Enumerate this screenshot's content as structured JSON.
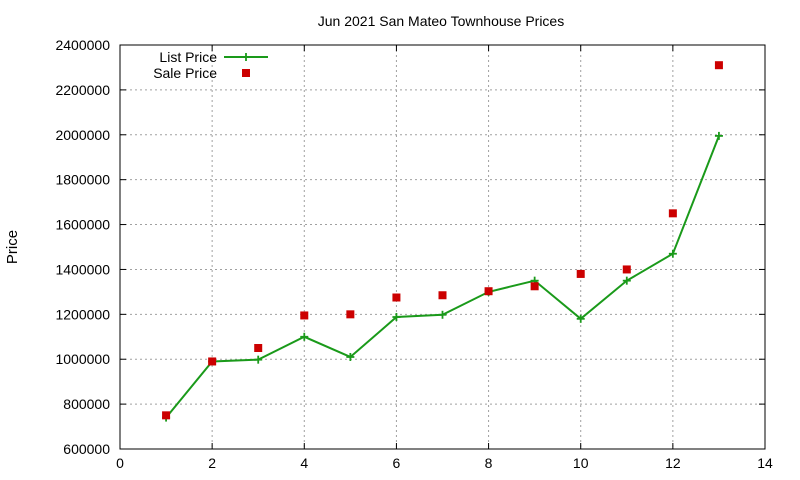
{
  "chart_data": {
    "type": "line",
    "title": "Jun 2021 San Mateo Townhouse Prices",
    "xlabel": "",
    "ylabel": "Price",
    "xlim": [
      0,
      14
    ],
    "ylim": [
      600000,
      2400000
    ],
    "x_ticks": [
      0,
      2,
      4,
      6,
      8,
      10,
      12,
      14
    ],
    "y_ticks": [
      600000,
      800000,
      1000000,
      1200000,
      1400000,
      1600000,
      1800000,
      2000000,
      2200000,
      2400000
    ],
    "grid": true,
    "legend_position": "top-left",
    "series": [
      {
        "name": "List Price",
        "style": "line-with-plus-markers",
        "color": "#1a9a1a",
        "x": [
          1,
          2,
          3,
          4,
          5,
          6,
          7,
          8,
          9,
          10,
          11,
          12,
          13
        ],
        "values": [
          740000,
          990000,
          998000,
          1100000,
          1010000,
          1188000,
          1198000,
          1300000,
          1350000,
          1180000,
          1350000,
          1470000,
          1995000
        ]
      },
      {
        "name": "Sale Price",
        "style": "square-markers",
        "color": "#cc0000",
        "x": [
          1,
          2,
          3,
          4,
          5,
          6,
          7,
          8,
          9,
          10,
          11,
          12,
          13
        ],
        "values": [
          750000,
          990000,
          1050000,
          1195000,
          1200000,
          1275000,
          1285000,
          1303000,
          1325000,
          1380000,
          1400000,
          1650000,
          2310000
        ]
      }
    ]
  }
}
